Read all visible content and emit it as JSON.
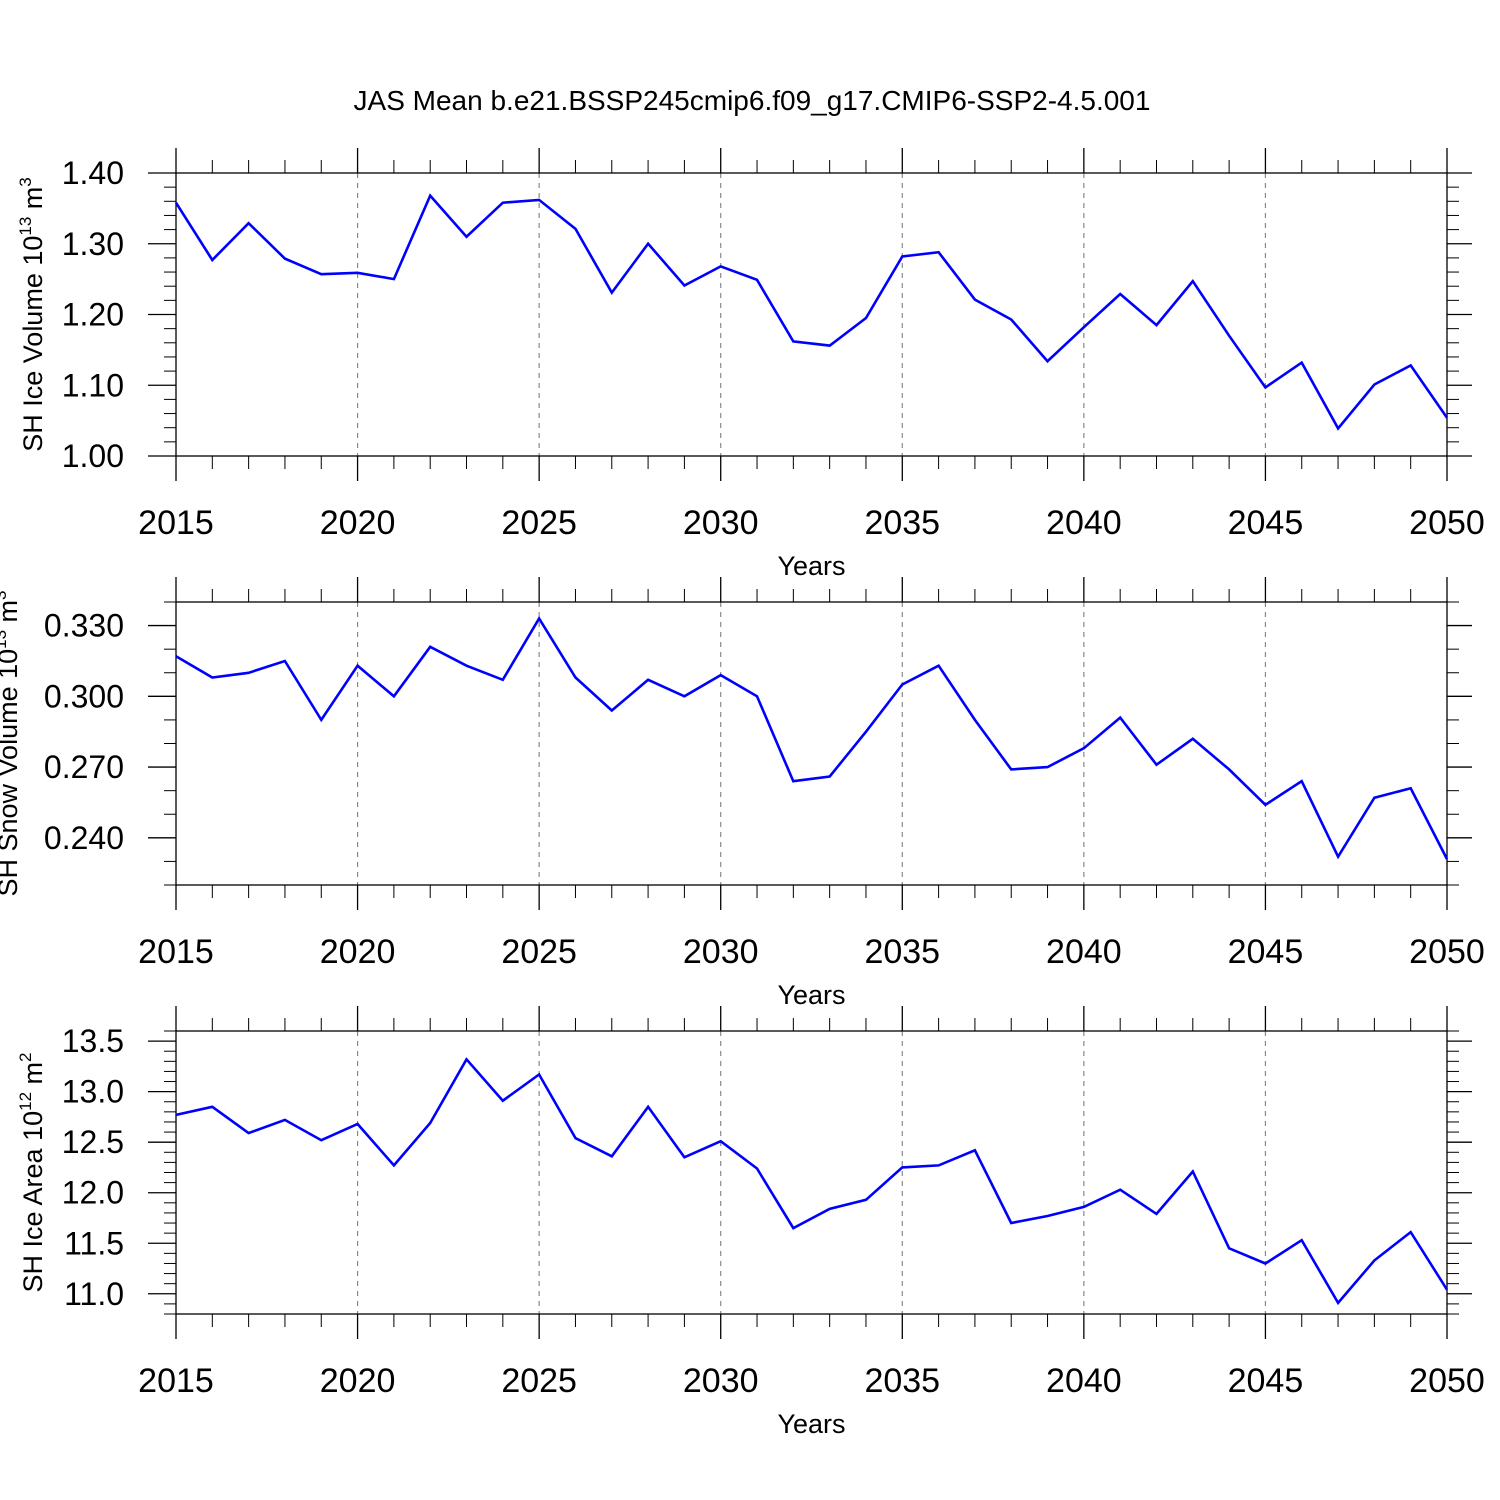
{
  "figure": {
    "title": "JAS Mean b.e21.BSSP245cmip6.f09_g17.CMIP6-SSP2-4.5.001",
    "line_color": "#0000ff",
    "grid_color": "#888888"
  },
  "chart_data": [
    {
      "type": "line",
      "name": "ice-volume",
      "xlabel": "Years",
      "ylabel_main": "SH Ice Volume 10",
      "ylabel_exp": "13",
      "ylabel_unit": " m",
      "ylabel_unit_exp": "3",
      "xlim": [
        2015,
        2050
      ],
      "ylim": [
        1.0,
        1.4
      ],
      "grid": "vertical dashed",
      "x_ticks": [
        2015,
        2020,
        2025,
        2030,
        2035,
        2040,
        2045,
        2050
      ],
      "x_tick_labels": [
        "2015",
        "2020",
        "2025",
        "2030",
        "2035",
        "2040",
        "2045",
        "2050"
      ],
      "y_ticks": [
        1.0,
        1.1,
        1.2,
        1.3,
        1.4
      ],
      "y_tick_labels": [
        "1.00",
        "1.10",
        "1.20",
        "1.30",
        "1.40"
      ],
      "y_minor_step": 0.02,
      "x": [
        2015,
        2016,
        2017,
        2018,
        2019,
        2020,
        2021,
        2022,
        2023,
        2024,
        2025,
        2026,
        2027,
        2028,
        2029,
        2030,
        2031,
        2032,
        2033,
        2034,
        2035,
        2036,
        2037,
        2038,
        2039,
        2040,
        2041,
        2042,
        2043,
        2044,
        2045,
        2046,
        2047,
        2048,
        2049,
        2050
      ],
      "values": [
        1.358,
        1.277,
        1.329,
        1.279,
        1.257,
        1.259,
        1.25,
        1.368,
        1.31,
        1.358,
        1.362,
        1.321,
        1.231,
        1.3,
        1.241,
        1.268,
        1.249,
        1.162,
        1.156,
        1.195,
        1.282,
        1.288,
        1.221,
        1.193,
        1.134,
        1.182,
        1.229,
        1.185,
        1.247,
        1.17,
        1.097,
        1.132,
        1.039,
        1.101,
        1.128,
        1.054
      ]
    },
    {
      "type": "line",
      "name": "snow-volume",
      "xlabel": "Years",
      "ylabel_main": "SH Snow Volume 10",
      "ylabel_exp": "13",
      "ylabel_unit": " m",
      "ylabel_unit_exp": "3",
      "xlim": [
        2015,
        2050
      ],
      "ylim": [
        0.22,
        0.34
      ],
      "grid": "vertical dashed",
      "x_ticks": [
        2015,
        2020,
        2025,
        2030,
        2035,
        2040,
        2045,
        2050
      ],
      "x_tick_labels": [
        "2015",
        "2020",
        "2025",
        "2030",
        "2035",
        "2040",
        "2045",
        "2050"
      ],
      "y_ticks": [
        0.24,
        0.27,
        0.3,
        0.33
      ],
      "y_tick_labels": [
        "0.240",
        "0.270",
        "0.300",
        "0.330"
      ],
      "y_minor_step": 0.01,
      "x": [
        2015,
        2016,
        2017,
        2018,
        2019,
        2020,
        2021,
        2022,
        2023,
        2024,
        2025,
        2026,
        2027,
        2028,
        2029,
        2030,
        2031,
        2032,
        2033,
        2034,
        2035,
        2036,
        2037,
        2038,
        2039,
        2040,
        2041,
        2042,
        2043,
        2044,
        2045,
        2046,
        2047,
        2048,
        2049,
        2050
      ],
      "values": [
        0.317,
        0.308,
        0.31,
        0.315,
        0.29,
        0.313,
        0.3,
        0.321,
        0.313,
        0.307,
        0.333,
        0.308,
        0.294,
        0.307,
        0.3,
        0.309,
        0.3,
        0.264,
        0.266,
        0.285,
        0.305,
        0.313,
        0.29,
        0.269,
        0.27,
        0.278,
        0.291,
        0.271,
        0.282,
        0.269,
        0.254,
        0.264,
        0.232,
        0.257,
        0.261,
        0.231
      ]
    },
    {
      "type": "line",
      "name": "ice-area",
      "xlabel": "Years",
      "ylabel_main": "SH Ice Area 10",
      "ylabel_exp": "12",
      "ylabel_unit": " m",
      "ylabel_unit_exp": "2",
      "xlim": [
        2015,
        2050
      ],
      "ylim": [
        10.8,
        13.6
      ],
      "grid": "vertical dashed",
      "x_ticks": [
        2015,
        2020,
        2025,
        2030,
        2035,
        2040,
        2045,
        2050
      ],
      "x_tick_labels": [
        "2015",
        "2020",
        "2025",
        "2030",
        "2035",
        "2040",
        "2045",
        "2050"
      ],
      "y_ticks": [
        11.0,
        11.5,
        12.0,
        12.5,
        13.0,
        13.5
      ],
      "y_tick_labels": [
        "11.0",
        "11.5",
        "12.0",
        "12.5",
        "13.0",
        "13.5"
      ],
      "y_minor_step": 0.1,
      "x": [
        2015,
        2016,
        2017,
        2018,
        2019,
        2020,
        2021,
        2022,
        2023,
        2024,
        2025,
        2026,
        2027,
        2028,
        2029,
        2030,
        2031,
        2032,
        2033,
        2034,
        2035,
        2036,
        2037,
        2038,
        2039,
        2040,
        2041,
        2042,
        2043,
        2044,
        2045,
        2046,
        2047,
        2048,
        2049,
        2050
      ],
      "values": [
        12.77,
        12.85,
        12.59,
        12.72,
        12.52,
        12.68,
        12.27,
        12.69,
        13.32,
        12.91,
        13.17,
        12.54,
        12.36,
        12.85,
        12.35,
        12.51,
        12.24,
        11.65,
        11.84,
        11.93,
        12.25,
        12.27,
        12.42,
        11.7,
        11.77,
        11.86,
        12.03,
        11.79,
        12.21,
        11.45,
        11.3,
        11.53,
        10.91,
        11.33,
        11.61,
        11.04
      ]
    }
  ]
}
